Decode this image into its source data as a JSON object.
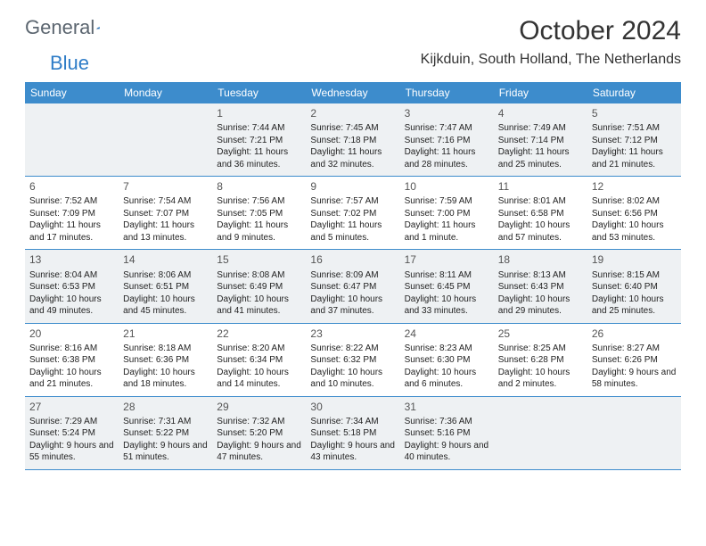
{
  "logo": {
    "part1": "General",
    "part2": "Blue"
  },
  "title": "October 2024",
  "location": "Kijkduin, South Holland, The Netherlands",
  "colors": {
    "header_bg": "#3d8ccc",
    "header_text": "#ffffff",
    "shade_bg": "#eef1f3",
    "border": "#3d8ccc",
    "text": "#222222",
    "logo_gray": "#5c6670",
    "logo_blue": "#2e7cc7"
  },
  "fonts": {
    "title_size": 30,
    "location_size": 16,
    "header_size": 12,
    "body_size": 10,
    "daynum_size": 12
  },
  "day_headers": [
    "Sunday",
    "Monday",
    "Tuesday",
    "Wednesday",
    "Thursday",
    "Friday",
    "Saturday"
  ],
  "weeks": [
    [
      {
        "blank": true
      },
      {
        "blank": true
      },
      {
        "day": "1",
        "sunrise": "Sunrise: 7:44 AM",
        "sunset": "Sunset: 7:21 PM",
        "daylight": "Daylight: 11 hours and 36 minutes."
      },
      {
        "day": "2",
        "sunrise": "Sunrise: 7:45 AM",
        "sunset": "Sunset: 7:18 PM",
        "daylight": "Daylight: 11 hours and 32 minutes."
      },
      {
        "day": "3",
        "sunrise": "Sunrise: 7:47 AM",
        "sunset": "Sunset: 7:16 PM",
        "daylight": "Daylight: 11 hours and 28 minutes."
      },
      {
        "day": "4",
        "sunrise": "Sunrise: 7:49 AM",
        "sunset": "Sunset: 7:14 PM",
        "daylight": "Daylight: 11 hours and 25 minutes."
      },
      {
        "day": "5",
        "sunrise": "Sunrise: 7:51 AM",
        "sunset": "Sunset: 7:12 PM",
        "daylight": "Daylight: 11 hours and 21 minutes."
      }
    ],
    [
      {
        "day": "6",
        "sunrise": "Sunrise: 7:52 AM",
        "sunset": "Sunset: 7:09 PM",
        "daylight": "Daylight: 11 hours and 17 minutes."
      },
      {
        "day": "7",
        "sunrise": "Sunrise: 7:54 AM",
        "sunset": "Sunset: 7:07 PM",
        "daylight": "Daylight: 11 hours and 13 minutes."
      },
      {
        "day": "8",
        "sunrise": "Sunrise: 7:56 AM",
        "sunset": "Sunset: 7:05 PM",
        "daylight": "Daylight: 11 hours and 9 minutes."
      },
      {
        "day": "9",
        "sunrise": "Sunrise: 7:57 AM",
        "sunset": "Sunset: 7:02 PM",
        "daylight": "Daylight: 11 hours and 5 minutes."
      },
      {
        "day": "10",
        "sunrise": "Sunrise: 7:59 AM",
        "sunset": "Sunset: 7:00 PM",
        "daylight": "Daylight: 11 hours and 1 minute."
      },
      {
        "day": "11",
        "sunrise": "Sunrise: 8:01 AM",
        "sunset": "Sunset: 6:58 PM",
        "daylight": "Daylight: 10 hours and 57 minutes."
      },
      {
        "day": "12",
        "sunrise": "Sunrise: 8:02 AM",
        "sunset": "Sunset: 6:56 PM",
        "daylight": "Daylight: 10 hours and 53 minutes."
      }
    ],
    [
      {
        "day": "13",
        "sunrise": "Sunrise: 8:04 AM",
        "sunset": "Sunset: 6:53 PM",
        "daylight": "Daylight: 10 hours and 49 minutes."
      },
      {
        "day": "14",
        "sunrise": "Sunrise: 8:06 AM",
        "sunset": "Sunset: 6:51 PM",
        "daylight": "Daylight: 10 hours and 45 minutes."
      },
      {
        "day": "15",
        "sunrise": "Sunrise: 8:08 AM",
        "sunset": "Sunset: 6:49 PM",
        "daylight": "Daylight: 10 hours and 41 minutes."
      },
      {
        "day": "16",
        "sunrise": "Sunrise: 8:09 AM",
        "sunset": "Sunset: 6:47 PM",
        "daylight": "Daylight: 10 hours and 37 minutes."
      },
      {
        "day": "17",
        "sunrise": "Sunrise: 8:11 AM",
        "sunset": "Sunset: 6:45 PM",
        "daylight": "Daylight: 10 hours and 33 minutes."
      },
      {
        "day": "18",
        "sunrise": "Sunrise: 8:13 AM",
        "sunset": "Sunset: 6:43 PM",
        "daylight": "Daylight: 10 hours and 29 minutes."
      },
      {
        "day": "19",
        "sunrise": "Sunrise: 8:15 AM",
        "sunset": "Sunset: 6:40 PM",
        "daylight": "Daylight: 10 hours and 25 minutes."
      }
    ],
    [
      {
        "day": "20",
        "sunrise": "Sunrise: 8:16 AM",
        "sunset": "Sunset: 6:38 PM",
        "daylight": "Daylight: 10 hours and 21 minutes."
      },
      {
        "day": "21",
        "sunrise": "Sunrise: 8:18 AM",
        "sunset": "Sunset: 6:36 PM",
        "daylight": "Daylight: 10 hours and 18 minutes."
      },
      {
        "day": "22",
        "sunrise": "Sunrise: 8:20 AM",
        "sunset": "Sunset: 6:34 PM",
        "daylight": "Daylight: 10 hours and 14 minutes."
      },
      {
        "day": "23",
        "sunrise": "Sunrise: 8:22 AM",
        "sunset": "Sunset: 6:32 PM",
        "daylight": "Daylight: 10 hours and 10 minutes."
      },
      {
        "day": "24",
        "sunrise": "Sunrise: 8:23 AM",
        "sunset": "Sunset: 6:30 PM",
        "daylight": "Daylight: 10 hours and 6 minutes."
      },
      {
        "day": "25",
        "sunrise": "Sunrise: 8:25 AM",
        "sunset": "Sunset: 6:28 PM",
        "daylight": "Daylight: 10 hours and 2 minutes."
      },
      {
        "day": "26",
        "sunrise": "Sunrise: 8:27 AM",
        "sunset": "Sunset: 6:26 PM",
        "daylight": "Daylight: 9 hours and 58 minutes."
      }
    ],
    [
      {
        "day": "27",
        "sunrise": "Sunrise: 7:29 AM",
        "sunset": "Sunset: 5:24 PM",
        "daylight": "Daylight: 9 hours and 55 minutes."
      },
      {
        "day": "28",
        "sunrise": "Sunrise: 7:31 AM",
        "sunset": "Sunset: 5:22 PM",
        "daylight": "Daylight: 9 hours and 51 minutes."
      },
      {
        "day": "29",
        "sunrise": "Sunrise: 7:32 AM",
        "sunset": "Sunset: 5:20 PM",
        "daylight": "Daylight: 9 hours and 47 minutes."
      },
      {
        "day": "30",
        "sunrise": "Sunrise: 7:34 AM",
        "sunset": "Sunset: 5:18 PM",
        "daylight": "Daylight: 9 hours and 43 minutes."
      },
      {
        "day": "31",
        "sunrise": "Sunrise: 7:36 AM",
        "sunset": "Sunset: 5:16 PM",
        "daylight": "Daylight: 9 hours and 40 minutes."
      },
      {
        "blank": true
      },
      {
        "blank": true
      }
    ]
  ]
}
